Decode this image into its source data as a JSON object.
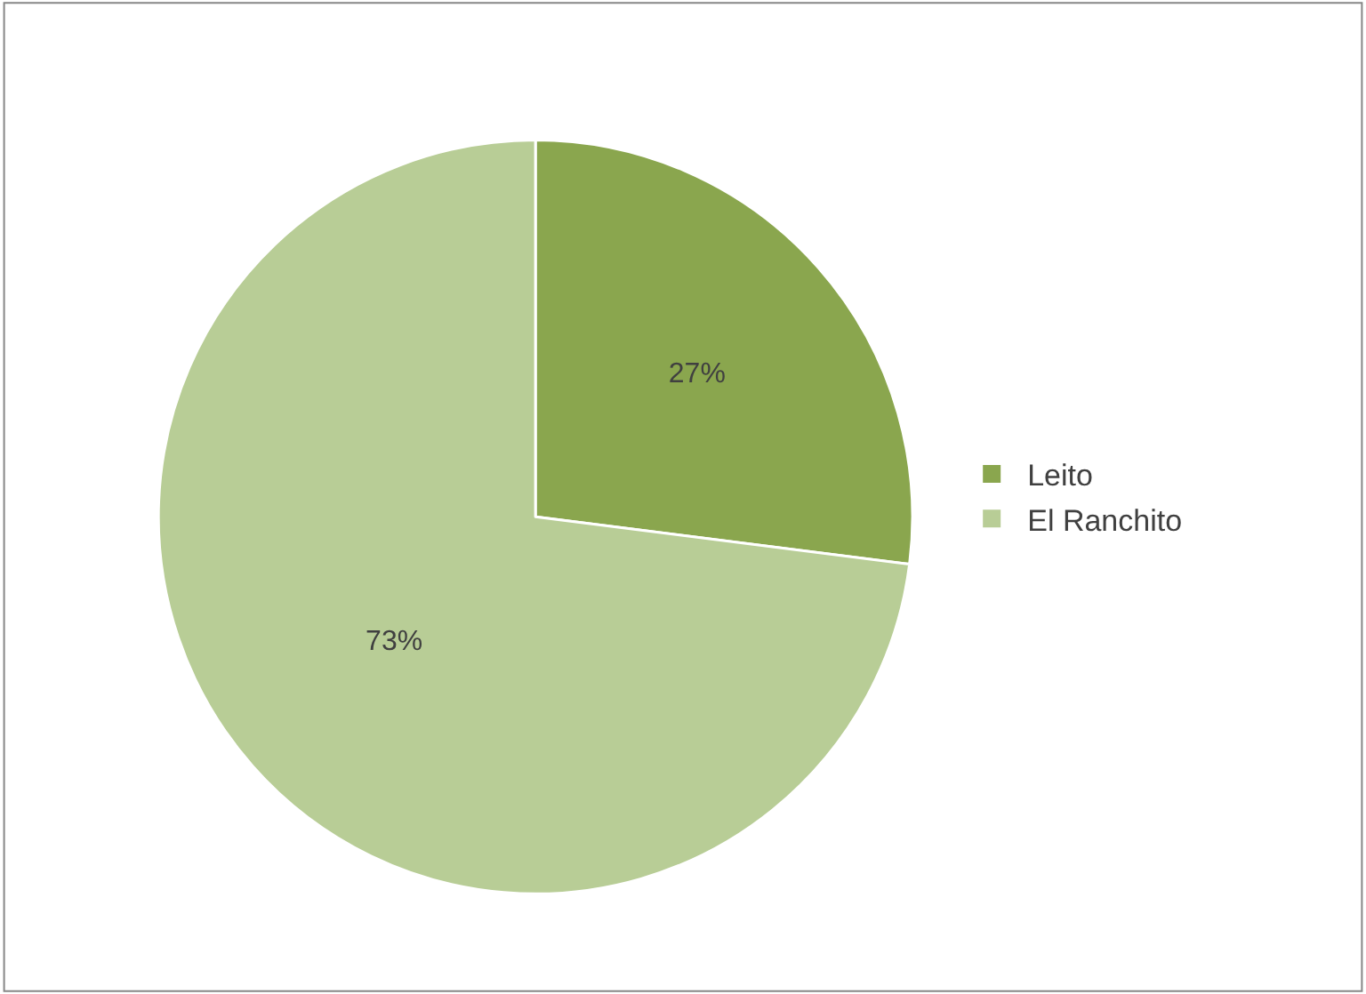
{
  "chart_data": {
    "type": "pie",
    "categories": [
      "Leito",
      "El Ranchito"
    ],
    "values": [
      27,
      73
    ],
    "value_labels": [
      "27%",
      "73%"
    ],
    "colors": [
      "#8aa64e",
      "#b8cd96"
    ],
    "legend": "right"
  }
}
